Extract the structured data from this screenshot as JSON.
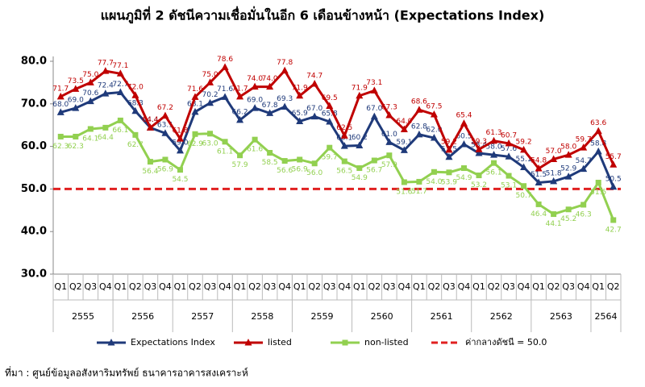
{
  "chart_data": {
    "type": "line",
    "title": "แผนภูมิที่ 2 ดัชนีความเชื่อมั่นในอีก 6 เดือนข้างหน้า (Expectations Index)",
    "categories": [
      "Q1",
      "Q2",
      "Q3",
      "Q4",
      "Q1",
      "Q2",
      "Q3",
      "Q4",
      "Q1",
      "Q2",
      "Q3",
      "Q4",
      "Q1",
      "Q2",
      "Q3",
      "Q4",
      "Q1",
      "Q2",
      "Q3",
      "Q4",
      "Q1",
      "Q2",
      "Q3",
      "Q4",
      "Q1",
      "Q2",
      "Q3",
      "Q4",
      "Q1",
      "Q2",
      "Q3",
      "Q4",
      "Q1",
      "Q2",
      "Q3",
      "Q4",
      "Q1",
      "Q2"
    ],
    "year_labels": [
      "2555",
      "2556",
      "2557",
      "2558",
      "2559",
      "2560",
      "2561",
      "2562",
      "2563",
      "2564"
    ],
    "ylim": [
      30,
      80
    ],
    "yticks": [
      {
        "value": 30,
        "label": "30.0"
      },
      {
        "value": 40,
        "label": "40.0"
      },
      {
        "value": 50,
        "label": "50.0"
      },
      {
        "value": 60,
        "label": "60.0"
      },
      {
        "value": 70,
        "label": "70.0"
      },
      {
        "value": 80,
        "label": "80.0"
      }
    ],
    "grid": false,
    "series": [
      {
        "name": "Expectations Index",
        "color": "#1f3a7a",
        "marker": "triangle",
        "values": [
          68.0,
          69.0,
          70.6,
          72.4,
          72.7,
          68.3,
          64.4,
          63.1,
          59.0,
          68.1,
          70.2,
          71.6,
          66.2,
          69.0,
          67.8,
          69.3,
          65.9,
          67.0,
          65.8,
          60.1,
          60.2,
          67.0,
          61.0,
          59.1,
          62.8,
          62.0,
          57.5,
          60.5,
          58.4,
          58.0,
          57.6,
          55.1,
          51.5,
          51.8,
          52.9,
          54.7,
          58.8,
          50.5
        ],
        "value_labels": [
          "68.0",
          "69.0",
          "70.6",
          "72.4",
          "72.7",
          "68.3",
          "64.4",
          "63.1",
          "59.0",
          "68.1",
          "70.2",
          "71.6",
          "66.2",
          "69.0",
          "67.8",
          "69.3",
          "65.9",
          "67.0",
          "65.8",
          "60.1",
          "60.2",
          "67.0",
          "61.0",
          "59.1",
          "62.8",
          "62.0",
          "57.5",
          "60.5",
          "58.4",
          "58.0",
          "57.6",
          "55.1",
          "51.5",
          "51.8",
          "52.9",
          "54.7",
          "58.8",
          "50.5"
        ]
      },
      {
        "name": "listed",
        "color": "#c00000",
        "marker": "triangle",
        "values": [
          71.7,
          73.5,
          75.0,
          77.7,
          77.1,
          72.0,
          64.4,
          67.2,
          61.8,
          71.6,
          75.0,
          78.6,
          71.7,
          74.0,
          74.0,
          77.8,
          71.9,
          74.7,
          69.5,
          62.5,
          71.9,
          73.1,
          67.3,
          64.0,
          68.6,
          67.5,
          59.2,
          65.4,
          59.3,
          61.3,
          60.7,
          59.2,
          54.8,
          57.0,
          58.0,
          59.7,
          63.6,
          55.7
        ],
        "value_labels": [
          "71.7",
          "73.5",
          "75.0",
          "77.7",
          "77.1",
          "72.0",
          "64.4",
          "67.2",
          "61.8",
          "71.6",
          "75.0",
          "78.6",
          "71.7",
          "74.0",
          "74.0",
          "77.8",
          "71.9",
          "74.7",
          "69.5",
          "62.5",
          "71.9",
          "73.1",
          "67.3",
          "64.0",
          "68.6",
          "67.5",
          "59.2",
          "65.4",
          "59.3",
          "61.3",
          "60.7",
          "59.2",
          "54.8",
          "57.0",
          "58.0",
          "59.7",
          "63.6",
          "55.7"
        ]
      },
      {
        "name": "non-listed",
        "color": "#92d050",
        "marker": "square",
        "values": [
          62.3,
          62.3,
          64.1,
          64.4,
          66.1,
          62.7,
          56.4,
          56.9,
          54.5,
          62.9,
          63.0,
          61.1,
          57.9,
          61.6,
          58.5,
          56.6,
          56.9,
          56.0,
          59.7,
          56.5,
          54.9,
          56.7,
          57.9,
          51.6,
          51.7,
          54.0,
          53.9,
          54.9,
          53.2,
          56.1,
          53.1,
          50.7,
          46.4,
          44.1,
          45.2,
          46.3,
          51.5,
          42.7
        ],
        "value_labels": [
          "62.3",
          "62.3",
          "64.1",
          "64.4",
          "66.1",
          "62.7",
          "56.4",
          "56.9",
          "54.5",
          "62.9",
          "63.0",
          "61.1",
          "57.9",
          "61.6",
          "58.5",
          "56.6",
          "56.9",
          "56.0",
          "59.7",
          "56.5",
          "54.9",
          "56.7",
          "57.9",
          "51.6",
          "51.7",
          "54.0",
          "53.9",
          "54.9",
          "53.2",
          "56.1",
          "53.1",
          "50.7",
          "46.4",
          "44.1",
          "45.2",
          "46.3",
          "51.5",
          "42.7"
        ]
      }
    ],
    "reference": {
      "name": "ค่ากลางดัชนี = 50.0",
      "value": 50,
      "color": "#e02020"
    },
    "source": "ที่มา : ศูนย์ข้อมูลอสังหาริมทรัพย์ ธนาคารอาคารสงเคราะห์"
  }
}
